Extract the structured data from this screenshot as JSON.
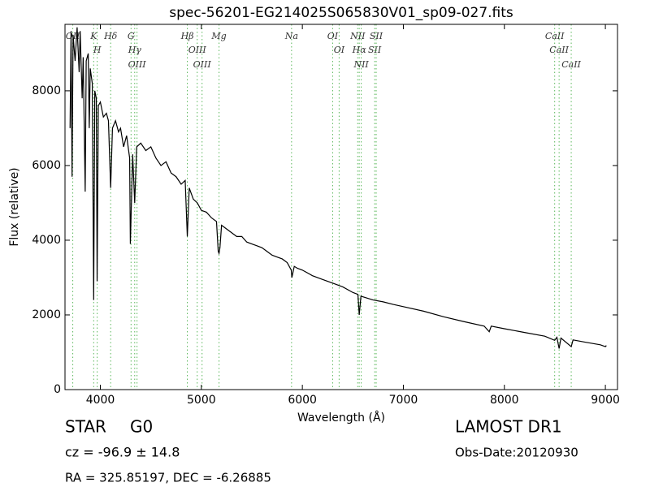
{
  "chart_data": {
    "type": "line",
    "title": "spec-56201-EG214025S065830V01_sp09-027.fits",
    "x_label": "Wavelength (Å)",
    "y_label": "Flux (relative)",
    "color": "#000000",
    "line_color": "#5cb85c",
    "xlim": [
      3650,
      9120
    ],
    "ylim": [
      0,
      9780
    ],
    "xticks": [
      4000,
      5000,
      6000,
      7000,
      8000,
      9000
    ],
    "yticks": [
      0,
      2000,
      4000,
      6000,
      8000
    ],
    "x": [
      3700,
      3710,
      3720,
      3730,
      3750,
      3770,
      3790,
      3800,
      3820,
      3830,
      3850,
      3860,
      3880,
      3890,
      3900,
      3920,
      3934,
      3945,
      3960,
      3968,
      3980,
      4000,
      4030,
      4060,
      4080,
      4102,
      4120,
      4150,
      4180,
      4200,
      4230,
      4260,
      4290,
      4297,
      4320,
      4340,
      4360,
      4400,
      4450,
      4500,
      4550,
      4600,
      4650,
      4700,
      4750,
      4800,
      4840,
      4861,
      4880,
      4920,
      4960,
      5000,
      5050,
      5100,
      5150,
      5167,
      5175,
      5184,
      5200,
      5250,
      5300,
      5350,
      5400,
      5450,
      5500,
      5550,
      5600,
      5650,
      5700,
      5750,
      5800,
      5850,
      5890,
      5896,
      5920,
      5950,
      6000,
      6100,
      6200,
      6300,
      6400,
      6500,
      6550,
      6563,
      6580,
      6700,
      6800,
      6900,
      7000,
      7200,
      7400,
      7600,
      7800,
      7850,
      7870,
      8000,
      8200,
      8400,
      8498,
      8520,
      8542,
      8560,
      8662,
      8680,
      8800,
      8950,
      9000,
      9010
    ],
    "values": [
      7000,
      9600,
      5700,
      9500,
      8800,
      9700,
      8500,
      9600,
      7800,
      8900,
      5300,
      8800,
      9000,
      7000,
      8600,
      8200,
      2400,
      8000,
      7800,
      2900,
      7600,
      7700,
      7300,
      7400,
      7200,
      5400,
      7000,
      7200,
      6900,
      7000,
      6500,
      6800,
      6200,
      3900,
      6300,
      5000,
      6500,
      6600,
      6400,
      6500,
      6200,
      6000,
      6100,
      5800,
      5700,
      5500,
      5600,
      4100,
      5400,
      5100,
      5000,
      4800,
      4750,
      4600,
      4500,
      3700,
      3650,
      3800,
      4400,
      4300,
      4200,
      4100,
      4100,
      3950,
      3900,
      3850,
      3800,
      3700,
      3600,
      3550,
      3500,
      3400,
      3200,
      3000,
      3300,
      3250,
      3200,
      3050,
      2950,
      2850,
      2750,
      2600,
      2550,
      2000,
      2500,
      2400,
      2350,
      2280,
      2220,
      2100,
      1950,
      1820,
      1700,
      1550,
      1700,
      1630,
      1530,
      1430,
      1320,
      1400,
      1100,
      1380,
      1150,
      1330,
      1270,
      1200,
      1150,
      1180
    ],
    "spectral_lines": [
      {
        "wavelength": 3727,
        "label": "OII"
      },
      {
        "wavelength": 3934,
        "label": "K"
      },
      {
        "wavelength": 3969,
        "label": "H"
      },
      {
        "wavelength": 4102,
        "label": "Hδ"
      },
      {
        "wavelength": 4304,
        "label": "G"
      },
      {
        "wavelength": 4340,
        "label": "Hγ"
      },
      {
        "wavelength": 4363,
        "label": "OIII"
      },
      {
        "wavelength": 4861,
        "label": "Hβ"
      },
      {
        "wavelength": 4959,
        "label": "OIII"
      },
      {
        "wavelength": 5007,
        "label": "OIII"
      },
      {
        "wavelength": 5175,
        "label": "Mg"
      },
      {
        "wavelength": 5893,
        "label": "Na"
      },
      {
        "wavelength": 6300,
        "label": "OI"
      },
      {
        "wavelength": 6364,
        "label": "OI"
      },
      {
        "wavelength": 6548,
        "label": "NII"
      },
      {
        "wavelength": 6563,
        "label": "Hα"
      },
      {
        "wavelength": 6583,
        "label": "NII"
      },
      {
        "wavelength": 6716,
        "label": "SII"
      },
      {
        "wavelength": 6731,
        "label": "SII"
      },
      {
        "wavelength": 8498,
        "label": "CaII"
      },
      {
        "wavelength": 8542,
        "label": "CaII"
      },
      {
        "wavelength": 8662,
        "label": "CaII"
      }
    ],
    "footer": {
      "object_class": "STAR",
      "subclass": "G0",
      "survey": "LAMOST DR1",
      "redshift": "cz = -96.9 ± 14.8",
      "obs_date": "Obs-Date:20120930",
      "coordinates": "RA = 325.85197, DEC = -6.26885"
    }
  }
}
